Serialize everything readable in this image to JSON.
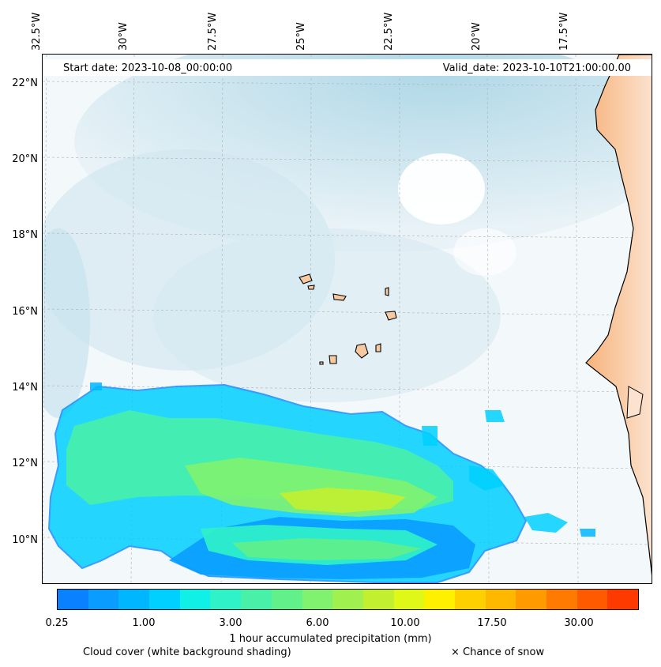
{
  "map": {
    "start_date": "Start date: 2023-10-08_00:00:00",
    "valid_date": "Valid_date: 2023-10-10T21:00:00.00",
    "longitude_labels": [
      "32.5°W",
      "30°W",
      "27.5°W",
      "25°W",
      "22.5°W",
      "20°W",
      "17.5°W"
    ],
    "latitude_labels": [
      "22°N",
      "20°N",
      "18°N",
      "16°N",
      "14°N",
      "12°N",
      "10°N"
    ],
    "colors": {
      "land": "#f4a462",
      "island_land": "#f6c9a0",
      "cloud": "#a9d6e5",
      "coastline": "#000000"
    }
  },
  "colorbar": {
    "title": "1 hour accumulated precipitation (mm)",
    "tick_labels": [
      "0.25",
      "1.00",
      "3.00",
      "6.00",
      "10.00",
      "17.50",
      "30.00"
    ],
    "colors": [
      "#0a82ff",
      "#0a9cff",
      "#00b6ff",
      "#00d0ff",
      "#10f0e6",
      "#30f2c8",
      "#48f0a8",
      "#62f08a",
      "#80f270",
      "#a0f050",
      "#c2f030",
      "#e0f818",
      "#fff000",
      "#ffd000",
      "#ffb800",
      "#ff9a00",
      "#ff7a00",
      "#ff5a00",
      "#ff3a00"
    ]
  },
  "legend": {
    "cloud_cover": "Cloud cover (white background shading)",
    "snow": "× Chance of snow"
  }
}
